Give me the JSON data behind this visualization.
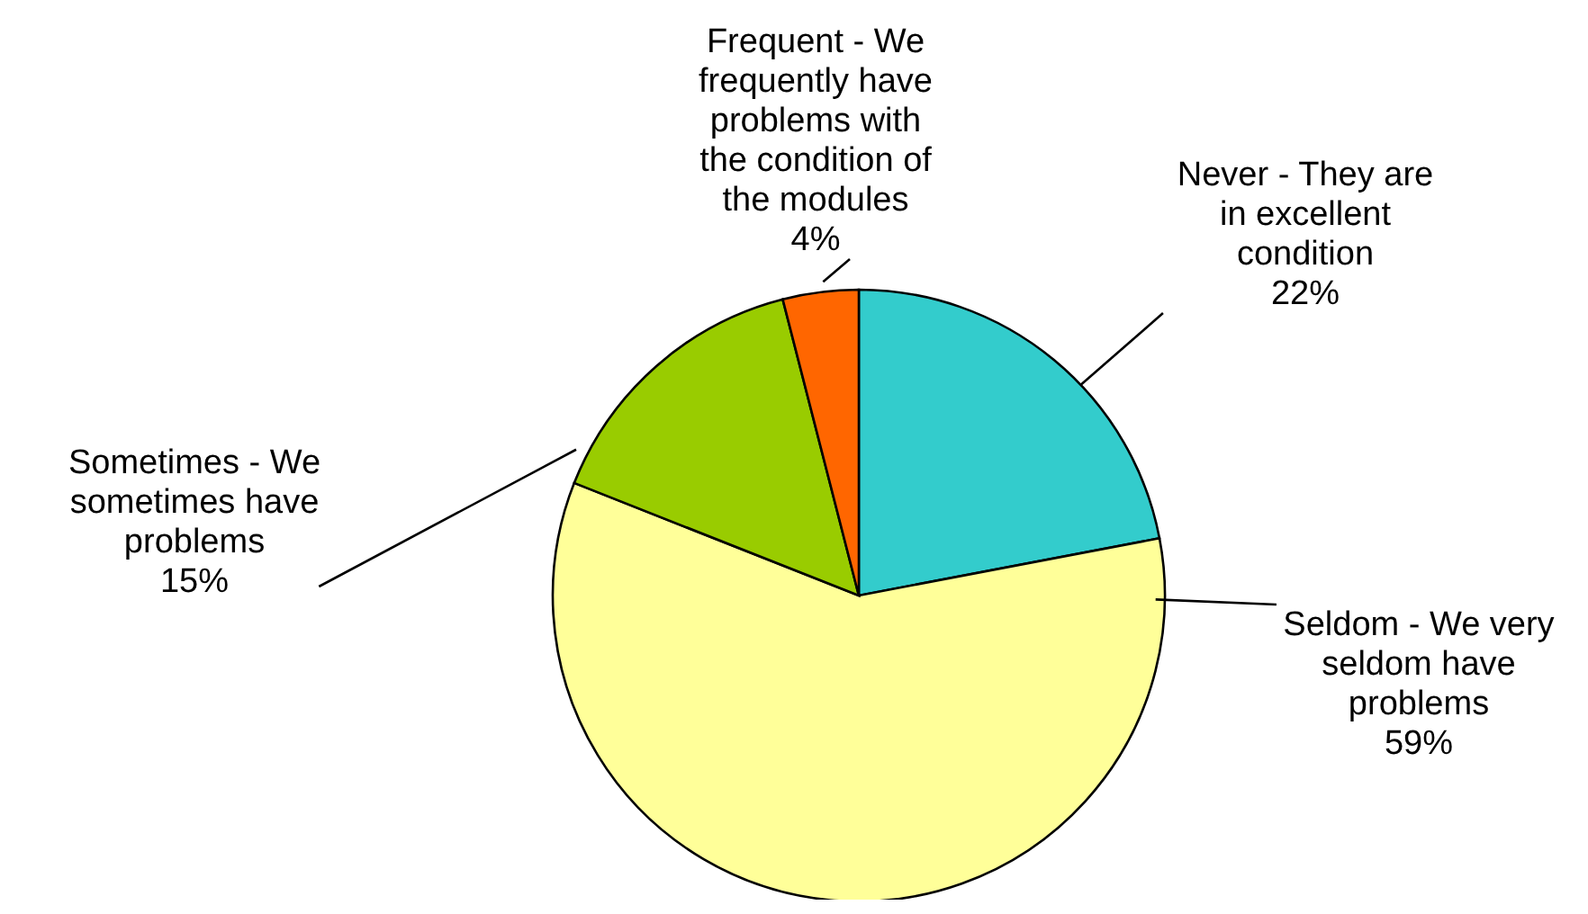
{
  "chart_data": {
    "type": "pie",
    "categories": [
      "Never - They are in excellent condition",
      "Seldom - We very seldom have problems",
      "Sometimes - We sometimes have problems",
      "Frequent - We frequently have problems with the condition of the modules"
    ],
    "values": [
      22,
      59,
      15,
      4
    ],
    "value_labels": [
      "22%",
      "59%",
      "15%",
      "4%"
    ],
    "colors": [
      "#33cccc",
      "#ffff99",
      "#99cc00",
      "#ff6600"
    ]
  }
}
